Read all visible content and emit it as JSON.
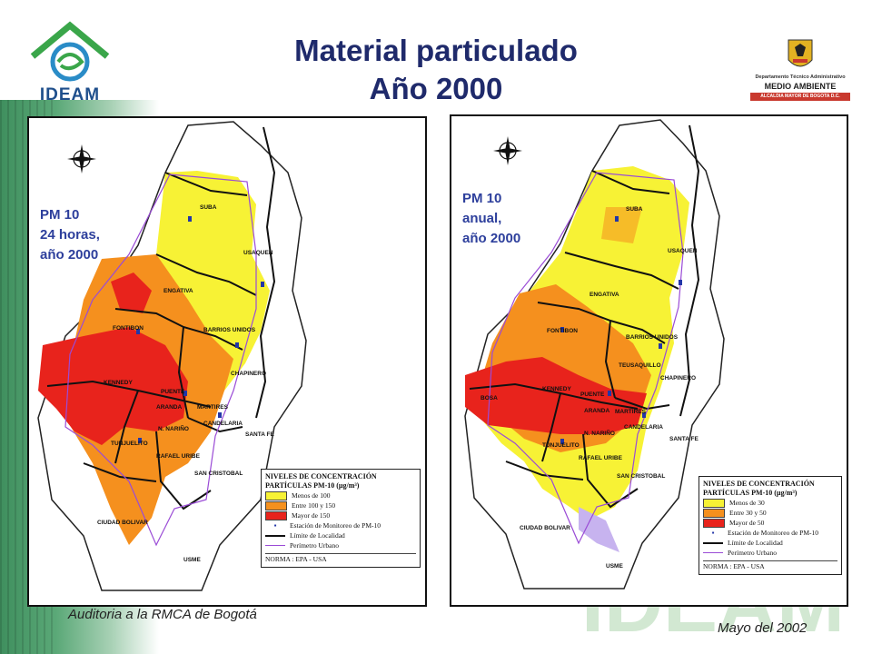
{
  "slide": {
    "title_line1": "Material particulado",
    "title_line2": "Año 2000",
    "footer_left": "Auditoria a la RMCA de Bogotá",
    "footer_right": "Mayo del 2002"
  },
  "logos": {
    "ideam_text": "IDEAM",
    "ma_line1": "Departamento Técnico Administrativo",
    "ma_line2": "MEDIO AMBIENTE",
    "ma_line3": "ALCALDIA MAYOR DE BOGOTA D.C."
  },
  "maps": [
    {
      "label_lines": [
        "PM 10",
        "24 horas,",
        "año 2000"
      ],
      "legend": {
        "title1": "NIVELES DE CONCENTRACIÓN",
        "title2": "PARTÍCULAS PM-10 (µg/m³)",
        "items": [
          "Menos de 100",
          "Entre 100 y 150",
          "Mayor de 150"
        ],
        "colors": [
          "#f7f235",
          "#f5901e",
          "#e8231c"
        ],
        "station": "Estación de Monitoreo de PM-10",
        "limit": "Límite de Localidad",
        "perimeter": "Perímetro Urbano",
        "norma": "NORMA : EPA - USA"
      },
      "localities": [
        "SUBA",
        "USAQUEN",
        "ENGATIVA",
        "FONTIBON",
        "BARRIOS UNIDOS",
        "CHAPINERO",
        "KENNEDY",
        "PUENTE",
        "ARANDA",
        "MARTIRES",
        "N. NARIÑO",
        "CANDELARIA",
        "TUNJUELITO",
        "SANTA FE",
        "RAFAEL URIBE",
        "SAN CRISTOBAL",
        "CIUDAD BOLIVAR",
        "USME"
      ]
    },
    {
      "label_lines": [
        "PM 10",
        "anual,",
        "año 2000"
      ],
      "legend": {
        "title1": "NIVELES DE CONCENTRACIÓN",
        "title2": "PARTÍCULAS PM-10 (µg/m³)",
        "items": [
          "Menos de 30",
          "Entre 30 y 50",
          "Mayor de 50"
        ],
        "colors": [
          "#f7f235",
          "#f5901e",
          "#e8231c"
        ],
        "station": "Estación de Monitoreo de PM-10",
        "limit": "Límite de Localidad",
        "perimeter": "Perímetro Urbano",
        "norma": "NORMA : EPA - USA"
      },
      "localities": [
        "SUBA",
        "USAQUEN",
        "ENGATIVA",
        "FONTIBON",
        "BARRIOS UNIDOS",
        "TEUSAQUILLO",
        "CHAPINERO",
        "BOSA",
        "KENNEDY",
        "PUENTE",
        "ARANDA",
        "MARTIRES",
        "N. NARIÑO",
        "CANDELARIA",
        "SANTA FE",
        "TUNJUELITO",
        "RAFAEL URIBE",
        "SAN CRISTOBAL",
        "CIUDAD BOLIVAR",
        "USME"
      ]
    }
  ]
}
